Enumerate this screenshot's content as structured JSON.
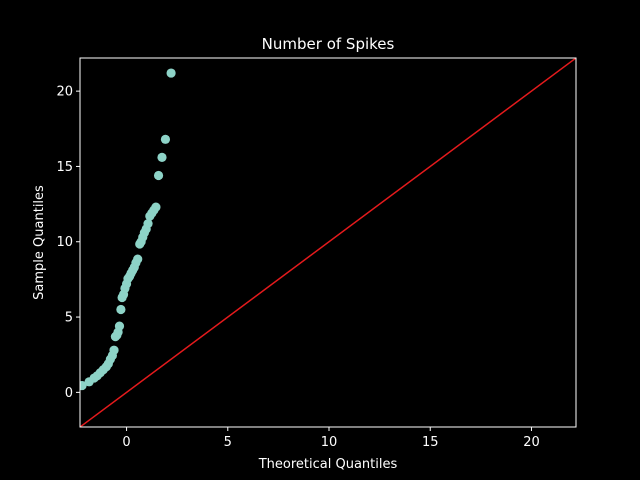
{
  "chart_data": {
    "type": "scatter",
    "title": "Number of Spikes",
    "xlabel": "Theoretical Quantiles",
    "ylabel": "Sample Quantiles",
    "xlim": [
      -2.3,
      22.2
    ],
    "ylim": [
      -2.3,
      22.2
    ],
    "xticks": [
      0,
      5,
      10,
      15,
      20
    ],
    "yticks": [
      0,
      5,
      10,
      15,
      20
    ],
    "grid": false,
    "background": "#000000",
    "foreground": "#ffffff",
    "point_color": "#8dd3c7",
    "line_color": "#e41a1c",
    "reference_line": {
      "from": [
        -2.3,
        -2.3
      ],
      "to": [
        22.2,
        22.2
      ]
    },
    "points": [
      {
        "x": -2.2,
        "y": 0.45
      },
      {
        "x": -1.85,
        "y": 0.7
      },
      {
        "x": -1.6,
        "y": 0.95
      },
      {
        "x": -1.45,
        "y": 1.1
      },
      {
        "x": -1.3,
        "y": 1.3
      },
      {
        "x": -1.15,
        "y": 1.5
      },
      {
        "x": -1.0,
        "y": 1.7
      },
      {
        "x": -0.9,
        "y": 1.9
      },
      {
        "x": -0.8,
        "y": 2.2
      },
      {
        "x": -0.7,
        "y": 2.45
      },
      {
        "x": -0.62,
        "y": 2.8
      },
      {
        "x": -0.55,
        "y": 3.7
      },
      {
        "x": -0.48,
        "y": 3.8
      },
      {
        "x": -0.42,
        "y": 4.0
      },
      {
        "x": -0.35,
        "y": 4.4
      },
      {
        "x": -0.28,
        "y": 5.5
      },
      {
        "x": -0.22,
        "y": 6.3
      },
      {
        "x": -0.15,
        "y": 6.5
      },
      {
        "x": -0.08,
        "y": 6.9
      },
      {
        "x": 0.0,
        "y": 7.2
      },
      {
        "x": 0.07,
        "y": 7.55
      },
      {
        "x": 0.15,
        "y": 7.7
      },
      {
        "x": 0.22,
        "y": 7.9
      },
      {
        "x": 0.3,
        "y": 8.1
      },
      {
        "x": 0.38,
        "y": 8.3
      },
      {
        "x": 0.46,
        "y": 8.6
      },
      {
        "x": 0.55,
        "y": 8.85
      },
      {
        "x": 0.65,
        "y": 9.85
      },
      {
        "x": 0.72,
        "y": 10.0
      },
      {
        "x": 0.8,
        "y": 10.3
      },
      {
        "x": 0.88,
        "y": 10.6
      },
      {
        "x": 0.97,
        "y": 10.85
      },
      {
        "x": 1.06,
        "y": 11.2
      },
      {
        "x": 1.15,
        "y": 11.7
      },
      {
        "x": 1.25,
        "y": 11.9
      },
      {
        "x": 1.35,
        "y": 12.1
      },
      {
        "x": 1.45,
        "y": 12.3
      },
      {
        "x": 1.58,
        "y": 14.4
      },
      {
        "x": 1.75,
        "y": 15.6
      },
      {
        "x": 1.92,
        "y": 16.8
      },
      {
        "x": 2.2,
        "y": 21.2
      }
    ]
  }
}
